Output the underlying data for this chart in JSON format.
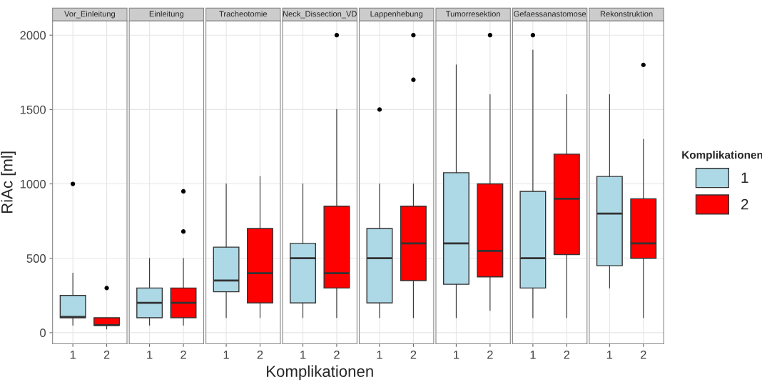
{
  "chart_data": [
    {
      "type": "box",
      "title": "Vor_Einleitung",
      "ylabel": "RiAc [ml]",
      "categories": [
        "1",
        "2"
      ],
      "ylim": [
        -75,
        2095
      ],
      "yticks": [
        0,
        500,
        1000,
        1500,
        2000
      ],
      "grid": true,
      "series": [
        {
          "color": "#add8e6",
          "boxes": [
            {
              "low": 50,
              "q1": 100,
              "median": 105,
              "q3": 250,
              "high": 400,
              "outliers": [
                1000
              ]
            },
            null
          ]
        },
        {
          "color": "#ff0000",
          "boxes": [
            null,
            {
              "low": 25,
              "q1": 50,
              "median": 50,
              "q3": 100,
              "high": 100,
              "outliers": [
                300
              ]
            }
          ]
        }
      ]
    },
    {
      "type": "box",
      "title": "Einleitung",
      "categories": [
        "1",
        "2"
      ],
      "ylim": [
        -75,
        2095
      ],
      "yticks": [
        0,
        500,
        1000,
        1500,
        2000
      ],
      "tick_labels": "x",
      "grid": true,
      "series": [
        {
          "color": "#add8e6",
          "boxes": [
            {
              "low": 50,
              "q1": 100,
              "median": 200,
              "q3": 300,
              "high": 500
            },
            null
          ]
        },
        {
          "color": "#ff0000",
          "boxes": [
            null,
            {
              "low": 50,
              "q1": 100,
              "median": 200,
              "q3": 300,
              "high": 500,
              "outliers": [
                950,
                680
              ]
            }
          ]
        }
      ]
    },
    {
      "type": "box",
      "title": "Tracheotomie",
      "categories": [
        "1",
        "2"
      ],
      "ylim": [
        -75,
        2095
      ],
      "yticks": [
        0,
        500,
        1000,
        1500,
        2000
      ],
      "tick_labels": "x",
      "grid": true,
      "series": [
        {
          "color": "#add8e6",
          "boxes": [
            {
              "low": 100,
              "q1": 275,
              "median": 350,
              "q3": 575,
              "high": 1000
            },
            null
          ]
        },
        {
          "color": "#ff0000",
          "boxes": [
            null,
            {
              "low": 100,
              "q1": 200,
              "median": 400,
              "q3": 700,
              "high": 1050
            }
          ]
        }
      ]
    },
    {
      "type": "box",
      "title": "Neck_Dissection_VD",
      "xlabel": "Komplikationen",
      "categories": [
        "1",
        "2"
      ],
      "ylim": [
        -75,
        2095
      ],
      "yticks": [
        0,
        500,
        1000,
        1500,
        2000
      ],
      "tick_labels": "x",
      "grid": true,
      "series": [
        {
          "color": "#add8e6",
          "boxes": [
            {
              "low": 100,
              "q1": 200,
              "median": 500,
              "q3": 600,
              "high": 1000
            },
            null
          ]
        },
        {
          "color": "#ff0000",
          "boxes": [
            null,
            {
              "low": 100,
              "q1": 300,
              "median": 400,
              "q3": 850,
              "high": 1500,
              "outliers": [
                2000
              ]
            }
          ]
        }
      ]
    },
    {
      "type": "box",
      "title": "Lappenhebung",
      "categories": [
        "1",
        "2"
      ],
      "ylim": [
        -75,
        2095
      ],
      "yticks": [
        0,
        500,
        1000,
        1500,
        2000
      ],
      "tick_labels": "x",
      "grid": true,
      "series": [
        {
          "color": "#add8e6",
          "boxes": [
            {
              "low": 100,
              "q1": 200,
              "median": 500,
              "q3": 700,
              "high": 1000,
              "outliers": [
                1500
              ]
            },
            null
          ]
        },
        {
          "color": "#ff0000",
          "boxes": [
            null,
            {
              "low": 100,
              "q1": 350,
              "median": 600,
              "q3": 850,
              "high": 1000,
              "outliers": [
                2000,
                1700
              ]
            }
          ]
        }
      ]
    },
    {
      "type": "box",
      "title": "Tumorresektion",
      "categories": [
        "1",
        "2"
      ],
      "ylim": [
        -75,
        2095
      ],
      "yticks": [
        0,
        500,
        1000,
        1500,
        2000
      ],
      "tick_labels": "x",
      "grid": true,
      "series": [
        {
          "color": "#add8e6",
          "boxes": [
            {
              "low": 100,
              "q1": 325,
              "median": 600,
              "q3": 1075,
              "high": 1800
            },
            null
          ]
        },
        {
          "color": "#ff0000",
          "boxes": [
            null,
            {
              "low": 150,
              "q1": 375,
              "median": 550,
              "q3": 1000,
              "high": 1600,
              "outliers": [
                2000
              ]
            }
          ]
        }
      ]
    },
    {
      "type": "box",
      "title": "Gefaessanastomose",
      "categories": [
        "1",
        "2"
      ],
      "ylim": [
        -75,
        2095
      ],
      "yticks": [
        0,
        500,
        1000,
        1500,
        2000
      ],
      "tick_labels": "x",
      "grid": true,
      "series": [
        {
          "color": "#add8e6",
          "boxes": [
            {
              "low": 100,
              "q1": 300,
              "median": 500,
              "q3": 950,
              "high": 1900,
              "outliers": [
                2000
              ]
            },
            null
          ]
        },
        {
          "color": "#ff0000",
          "boxes": [
            null,
            {
              "low": 100,
              "q1": 525,
              "median": 900,
              "q3": 1200,
              "high": 1600
            }
          ]
        }
      ]
    },
    {
      "type": "box",
      "title": "Rekonstruktion",
      "categories": [
        "1",
        "2"
      ],
      "ylim": [
        -75,
        2095
      ],
      "yticks": [
        0,
        500,
        1000,
        1500,
        2000
      ],
      "tick_labels": "x",
      "grid": true,
      "legend": "right",
      "legend_title": "Komplikationen",
      "series": [
        {
          "name": "1",
          "color": "#add8e6",
          "boxes": [
            {
              "low": 300,
              "q1": 450,
              "median": 800,
              "q3": 1050,
              "high": 1600
            },
            null
          ]
        },
        {
          "name": "2",
          "color": "#ff0000",
          "boxes": [
            null,
            {
              "low": 100,
              "q1": 500,
              "median": 600,
              "q3": 900,
              "high": 1300,
              "outliers": [
                1800
              ]
            }
          ]
        }
      ]
    }
  ]
}
